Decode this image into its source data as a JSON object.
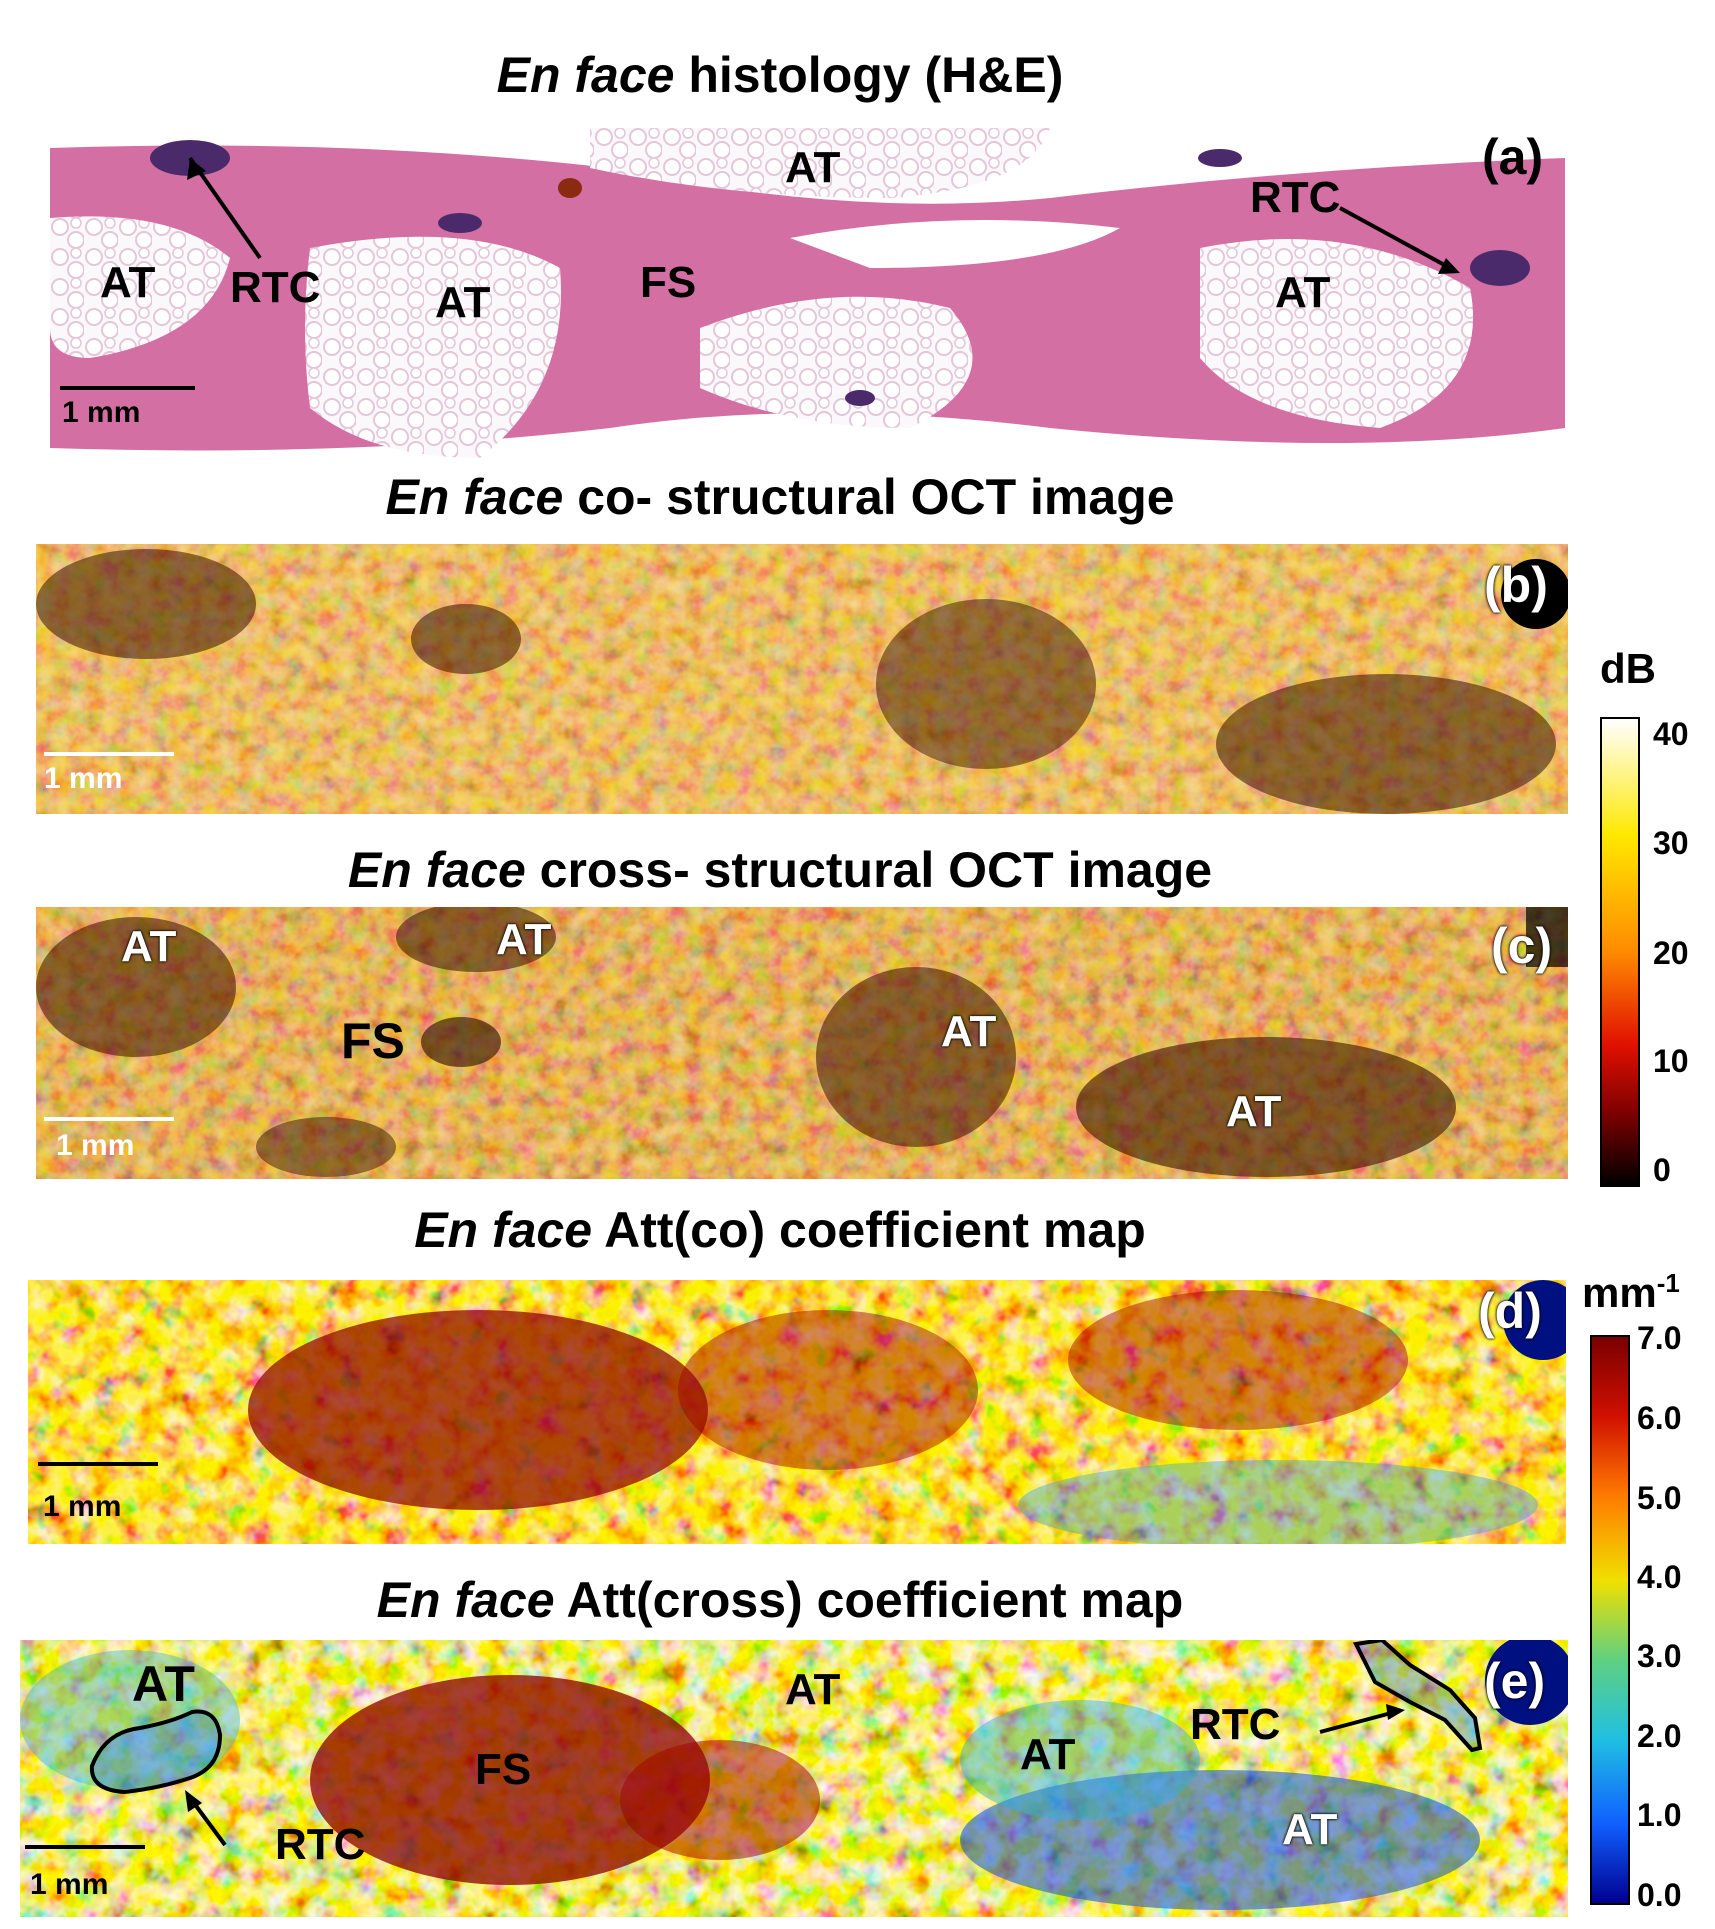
{
  "panels": {
    "a": {
      "title_italic": "En face",
      "title_rest": " histology (H&E)",
      "tag": "(a)",
      "scale": "1 mm",
      "labels": [
        "AT",
        "AT",
        "AT",
        "AT",
        "RTC",
        "RTC",
        "FS"
      ]
    },
    "b": {
      "title_italic": "En face",
      "title_rest": " co- structural OCT image",
      "tag": "(b)",
      "scale": "1 mm"
    },
    "c": {
      "title_italic": "En face",
      "title_rest": " cross- structural OCT image",
      "tag": "(c)",
      "scale": "1 mm",
      "labels": [
        "AT",
        "AT",
        "FS",
        "AT",
        "AT"
      ]
    },
    "d": {
      "title_italic": "En face",
      "title_rest": " Att(co) coefficient map",
      "tag": "(d)",
      "scale": "1 mm"
    },
    "e": {
      "title_italic": "En face",
      "title_rest": " Att(cross) coefficient map",
      "tag": "(e)",
      "scale": "1 mm",
      "labels": [
        "AT",
        "AT",
        "AT",
        "AT",
        "FS",
        "RTC",
        "RTC"
      ]
    }
  },
  "colorbar_db": {
    "unit": "dB",
    "ticks": [
      "40",
      "30",
      "20",
      "10",
      "0"
    ],
    "colors": [
      "#ffffff",
      "#ffe800",
      "#ff8a00",
      "#e01000",
      "#7a0000",
      "#000000"
    ]
  },
  "colorbar_att": {
    "unit_base": "mm",
    "unit_sup": "-1",
    "ticks": [
      "7.0",
      "6.0",
      "5.0",
      "4.0",
      "3.0",
      "2.0",
      "1.0",
      "0.0"
    ],
    "colors": [
      "#7a0000",
      "#d01000",
      "#ff7a00",
      "#f0e000",
      "#60d080",
      "#20c0e0",
      "#1060ff",
      "#000090"
    ]
  }
}
